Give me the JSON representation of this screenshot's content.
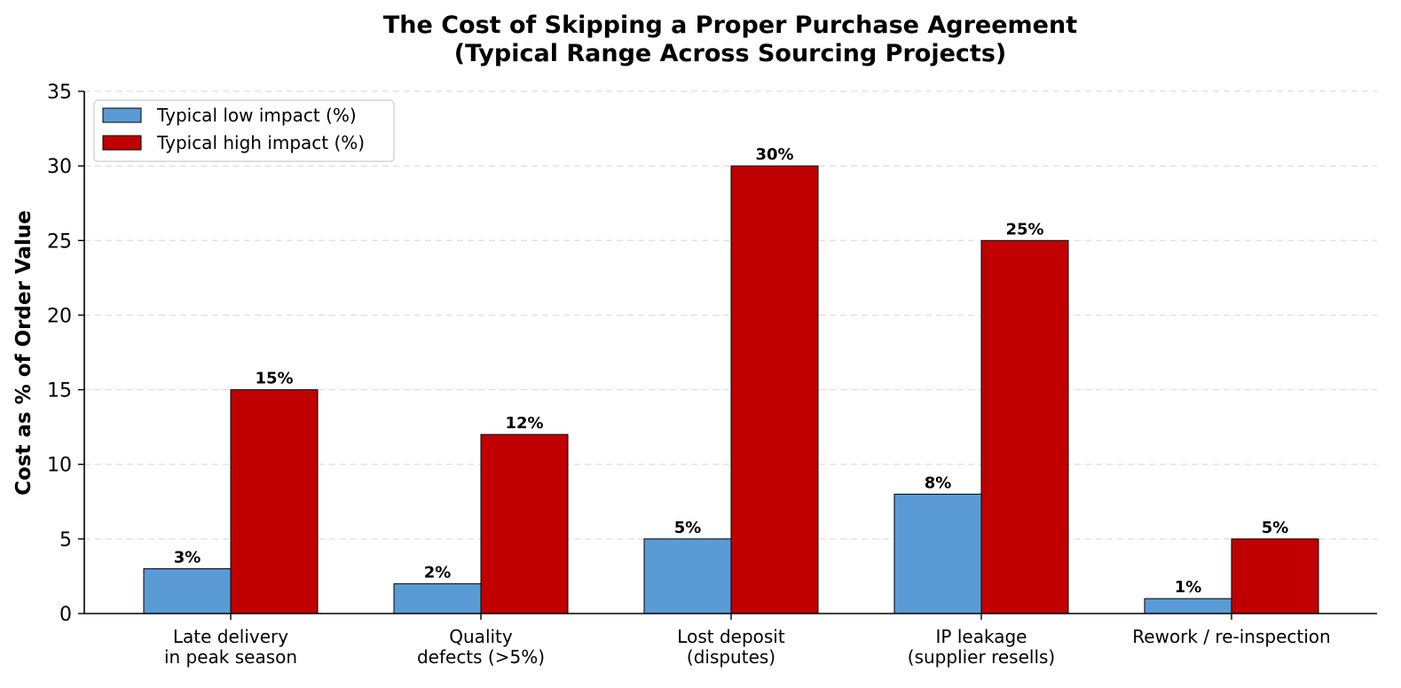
{
  "chart_data": {
    "type": "bar",
    "title": [
      "The Cost of Skipping a Proper Purchase Agreement",
      "(Typical Range Across Sourcing Projects)"
    ],
    "xlabel": "",
    "ylabel": "Cost as % of Order Value",
    "ylim": [
      0,
      35
    ],
    "yticks": [
      0,
      5,
      10,
      15,
      20,
      25,
      30,
      35
    ],
    "grid": "y-dashed",
    "legend_position": "top-left",
    "categories": [
      [
        "Late delivery",
        "in peak season"
      ],
      [
        "Quality",
        "defects (>5%)"
      ],
      [
        "Lost deposit",
        "(disputes)"
      ],
      [
        "IP leakage",
        "(supplier resells)"
      ],
      [
        "Rework / re-inspection"
      ]
    ],
    "series": [
      {
        "name": "Typical low impact (%)",
        "color": "#5b9bd5",
        "values": [
          3,
          2,
          5,
          8,
          1
        ],
        "labels": [
          "3%",
          "2%",
          "5%",
          "8%",
          "1%"
        ]
      },
      {
        "name": "Typical high impact (%)",
        "color": "#c00000",
        "values": [
          15,
          12,
          30,
          25,
          5
        ],
        "labels": [
          "15%",
          "12%",
          "30%",
          "25%",
          "5%"
        ]
      }
    ]
  }
}
